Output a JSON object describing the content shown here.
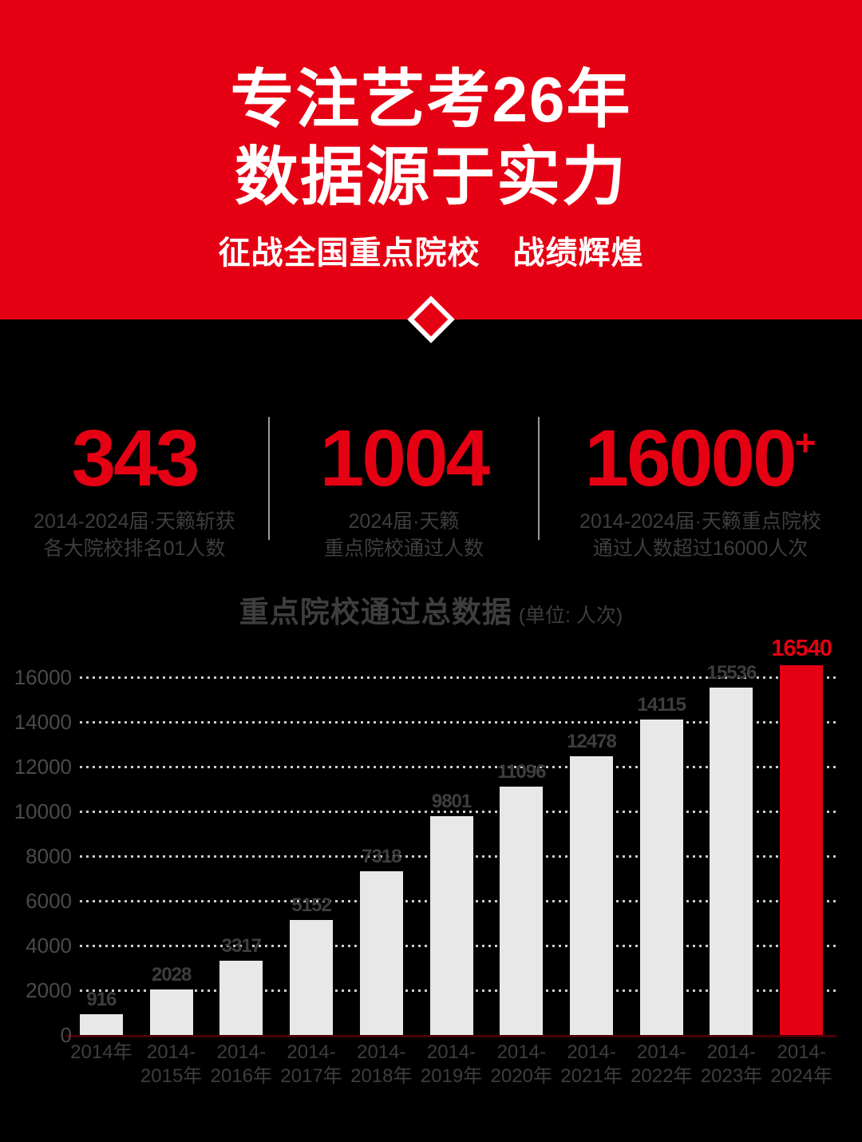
{
  "header": {
    "title_line1": "专注艺考26年",
    "title_line2": "数据源于实力",
    "subtitle": "征战全国重点院校　战绩辉煌"
  },
  "stats": [
    {
      "value": "343",
      "sup": "",
      "caption_line1": "2014-2024届·天籁斩获",
      "caption_line2": "各大院校排名01人数"
    },
    {
      "value": "1004",
      "sup": "",
      "caption_line1": "2024届·天籁",
      "caption_line2": "重点院校通过人数"
    },
    {
      "value": "16000",
      "sup": "+",
      "caption_line1": "2014-2024届·天籁重点院校",
      "caption_line2": "通过人数超过16000人次"
    }
  ],
  "chart_data": {
    "type": "bar",
    "title": "重点院校通过总数据",
    "unit_label": "(单位: 人次)",
    "categories": [
      [
        "2014年"
      ],
      [
        "2014-",
        "2015年"
      ],
      [
        "2014-",
        "2016年"
      ],
      [
        "2014-",
        "2017年"
      ],
      [
        "2014-",
        "2018年"
      ],
      [
        "2014-",
        "2019年"
      ],
      [
        "2014-",
        "2020年"
      ],
      [
        "2014-",
        "2021年"
      ],
      [
        "2014-",
        "2022年"
      ],
      [
        "2014-",
        "2023年"
      ],
      [
        "2014-",
        "2024年"
      ]
    ],
    "values": [
      916,
      2028,
      3317,
      5152,
      7318,
      9801,
      11096,
      12478,
      14115,
      15536,
      16540
    ],
    "highlight_index": 10,
    "y_ticks": [
      0,
      2000,
      4000,
      6000,
      8000,
      10000,
      12000,
      14000,
      16000
    ],
    "ylim": [
      0,
      16000
    ],
    "grid": "dotted-horizontal",
    "legend": "none",
    "colors": {
      "bar": "#E8E8E8",
      "highlight_bar": "#E60013",
      "value_label": "#3E3E3E",
      "highlight_value_label": "#E60013",
      "axis_label": "#4A4A4A",
      "gridline": "#CCCCCC",
      "background": "#000000",
      "hero_background": "#E60013",
      "hero_text": "#FFFFFF"
    }
  }
}
